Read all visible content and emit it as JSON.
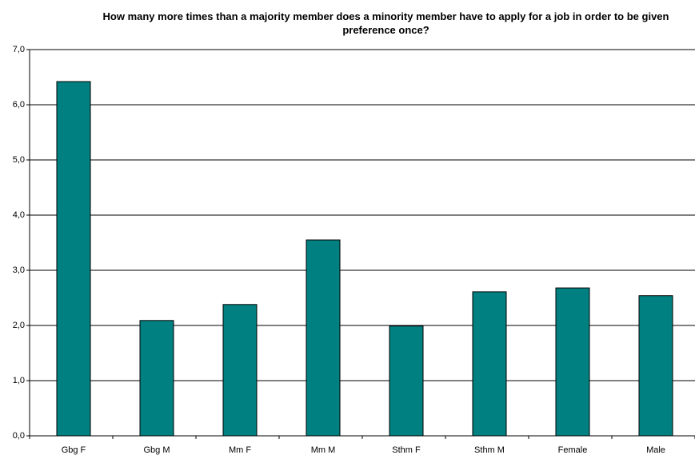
{
  "chart_data": {
    "type": "bar",
    "title": "How many more times than a majority member does a minority member have to apply for a job in order to be given preference once?",
    "categories": [
      "Gbg F",
      "Gbg M",
      "Mm F",
      "Mm  M",
      "Sthm F",
      "Sthm M",
      "Female",
      "Male"
    ],
    "values": [
      6.42,
      2.09,
      2.38,
      3.55,
      1.99,
      2.61,
      2.68,
      2.54
    ],
    "color": "#008080",
    "ylim": [
      0,
      7
    ],
    "yticks": [
      {
        "value": 0,
        "label": "0,0"
      },
      {
        "value": 1,
        "label": "1,0"
      },
      {
        "value": 2,
        "label": "2,0"
      },
      {
        "value": 3,
        "label": "3,0"
      },
      {
        "value": 4,
        "label": "4,0"
      },
      {
        "value": 5,
        "label": "5,0"
      },
      {
        "value": 6,
        "label": "6,0"
      },
      {
        "value": 7,
        "label": "7,0"
      }
    ],
    "grid": true
  }
}
